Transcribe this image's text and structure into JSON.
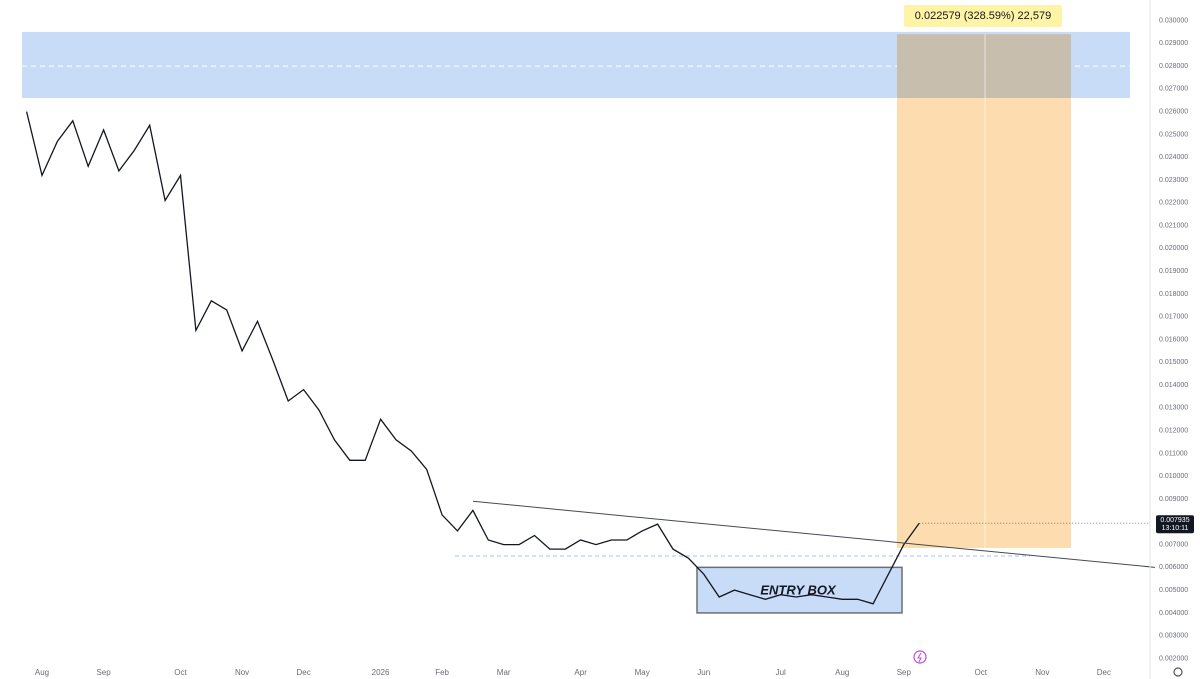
{
  "chart_data": {
    "type": "line",
    "categories": [
      null,
      "Aug",
      null,
      null,
      null,
      "Sep",
      null,
      null,
      null,
      null,
      "Oct",
      null,
      null,
      null,
      "Nov",
      null,
      null,
      null,
      "Dec",
      null,
      null,
      null,
      null,
      "2026",
      null,
      null,
      null,
      "Feb",
      null,
      null,
      null,
      "Mar",
      null,
      null,
      null,
      null,
      "Apr",
      null,
      null,
      null,
      "May",
      null,
      null,
      null,
      "Jun",
      null,
      null,
      null,
      null,
      "Jul",
      null,
      null,
      null,
      "Aug",
      null,
      null,
      null,
      "Sep",
      null,
      null,
      null,
      null,
      "Oct",
      null,
      null,
      null,
      "Nov",
      null,
      null,
      null,
      "Dec",
      null
    ],
    "series": [
      {
        "color": "#131722",
        "values": [
          0.026,
          0.0232,
          0.0247,
          0.0256,
          0.0236,
          0.0252,
          0.0234,
          0.0243,
          0.0254,
          0.0221,
          0.0232,
          0.0164,
          0.0177,
          0.0173,
          0.0155,
          0.0168,
          0.0151,
          0.0133,
          0.0138,
          0.0129,
          0.0116,
          0.0107,
          0.0107,
          0.0125,
          0.0116,
          0.0111,
          0.0103,
          0.0083,
          0.0076,
          0.0085,
          0.0072,
          0.007,
          0.007,
          0.0074,
          0.0068,
          0.0068,
          0.0072,
          0.007,
          0.0072,
          0.0072,
          0.0076,
          0.0079,
          0.0068,
          0.0064,
          0.0057,
          0.0047,
          0.005,
          0.0048,
          0.0046,
          0.0048,
          0.0047,
          0.0048,
          0.0047,
          0.0046,
          0.0046,
          0.0044,
          0.0057,
          0.007,
          0.007935,
          null,
          null,
          null,
          null,
          null,
          null,
          null,
          null,
          null,
          null,
          null,
          null,
          null
        ]
      }
    ],
    "ylim": [
      0.0011,
      0.0309
    ],
    "yticks": [
      {
        "value": 0.002,
        "label": "0.002000"
      },
      {
        "value": 0.003,
        "label": "0.003000"
      },
      {
        "value": 0.004,
        "label": "0.004000"
      },
      {
        "value": 0.005,
        "label": "0.005000"
      },
      {
        "value": 0.006,
        "label": "0.006000"
      },
      {
        "value": 0.007,
        "label": "0.007000"
      },
      {
        "value": 0.008,
        "label": "0.008000"
      },
      {
        "value": 0.009,
        "label": "0.009000"
      },
      {
        "value": 0.01,
        "label": "0.010000"
      },
      {
        "value": 0.011,
        "label": "0.011000"
      },
      {
        "value": 0.012,
        "label": "0.012000"
      },
      {
        "value": 0.013,
        "label": "0.013000"
      },
      {
        "value": 0.014,
        "label": "0.014000"
      },
      {
        "value": 0.015,
        "label": "0.015000"
      },
      {
        "value": 0.016,
        "label": "0.016000"
      },
      {
        "value": 0.017,
        "label": "0.017000"
      },
      {
        "value": 0.018,
        "label": "0.018000"
      },
      {
        "value": 0.019,
        "label": "0.019000"
      },
      {
        "value": 0.02,
        "label": "0.020000"
      },
      {
        "value": 0.021,
        "label": "0.021000"
      },
      {
        "value": 0.022,
        "label": "0.022000"
      },
      {
        "value": 0.023,
        "label": "0.023000"
      },
      {
        "value": 0.024,
        "label": "0.024000"
      },
      {
        "value": 0.025,
        "label": "0.025000"
      },
      {
        "value": 0.026,
        "label": "0.026000"
      },
      {
        "value": 0.027,
        "label": "0.027000"
      },
      {
        "value": 0.028,
        "label": "0.028000"
      },
      {
        "value": 0.029,
        "label": "0.029000"
      },
      {
        "value": 0.03,
        "label": "0.030000"
      }
    ],
    "grid": false,
    "last_price": {
      "label": "0.007935",
      "countdown": "13:10:11"
    },
    "target_zone": {
      "low": 0.0266,
      "high": 0.0295,
      "mid": 0.028,
      "color": "#c8dcf8"
    },
    "position": {
      "top": 0.0294,
      "bottom": 0.00685,
      "label": "0.022579 (328.59%) 22,579",
      "color": "#fdd9a6"
    },
    "trendline": {
      "start": 0.0089,
      "end": 0.006
    },
    "support": 0.0065,
    "entry_box": {
      "low": 0.004,
      "high": 0.006,
      "label": "ENTRY BOX",
      "color": "#c8dcf8"
    }
  }
}
